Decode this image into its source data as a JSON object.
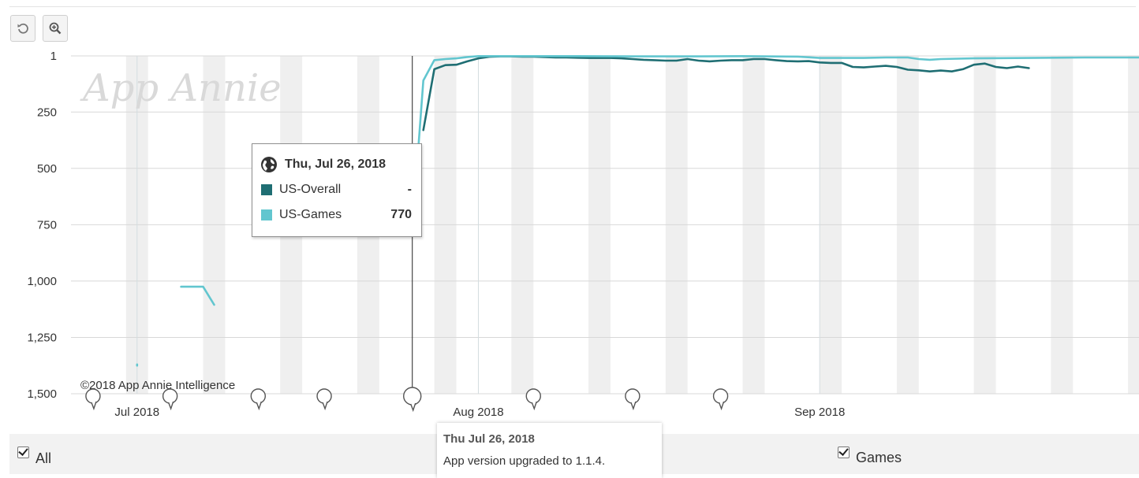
{
  "toolbar": {
    "reset_icon": "reset-zoom-icon",
    "zoom_icon": "zoom-in-icon"
  },
  "watermark": "App Annie",
  "copyright": "©2018 App Annie Intelligence",
  "tooltip": {
    "icon": "globe-icon",
    "date": "Thu, Jul 26, 2018",
    "rows": [
      {
        "name": "US-Overall",
        "value": "-",
        "color": "#1f6e73"
      },
      {
        "name": "US-Games",
        "value": "770",
        "color": "#62c6cf"
      }
    ]
  },
  "event_popup": {
    "date": "Thu Jul 26, 2018",
    "text": "App version upgraded to 1.1.4."
  },
  "legend": [
    {
      "label": "All",
      "checked": true
    },
    {
      "label": "Games",
      "checked": true
    }
  ],
  "chart_data": {
    "type": "line",
    "y_reversed": true,
    "ylim": [
      1,
      1500
    ],
    "yticks": [
      {
        "value": 1,
        "label": "1"
      },
      {
        "value": 250,
        "label": "250"
      },
      {
        "value": 500,
        "label": "500"
      },
      {
        "value": 750,
        "label": "750"
      },
      {
        "value": 1000,
        "label": "1,000"
      },
      {
        "value": 1250,
        "label": "1,250"
      },
      {
        "value": 1500,
        "label": "1,500"
      }
    ],
    "xlim": [
      "2018-06-25",
      "2018-09-30"
    ],
    "xticks": [
      {
        "date": "2018-07-01",
        "label": "Jul 2018"
      },
      {
        "date": "2018-08-01",
        "label": "Aug 2018"
      },
      {
        "date": "2018-09-01",
        "label": "Sep 2018"
      }
    ],
    "weekend_bands": [
      "2018-06-30",
      "2018-07-07",
      "2018-07-14",
      "2018-07-21",
      "2018-07-28",
      "2018-08-04",
      "2018-08-11",
      "2018-08-18",
      "2018-08-25",
      "2018-09-01",
      "2018-09-08",
      "2018-09-15",
      "2018-09-22",
      "2018-09-29"
    ],
    "crosshair_date": "2018-07-26",
    "event_markers": [
      "2018-06-27",
      "2018-07-04",
      "2018-07-12",
      "2018-07-18",
      "2018-07-26",
      "2018-08-06",
      "2018-08-15",
      "2018-08-23"
    ],
    "series": [
      {
        "name": "US-Overall",
        "color": "#1f6e73",
        "segments": [
          [
            [
              "2018-07-27",
              330
            ],
            [
              "2018-07-28",
              60
            ],
            [
              "2018-07-29",
              42
            ],
            [
              "2018-07-30",
              40
            ],
            [
              "2018-07-31",
              25
            ],
            [
              "2018-08-01",
              12
            ],
            [
              "2018-08-02",
              5
            ],
            [
              "2018-08-03",
              3
            ],
            [
              "2018-08-04",
              3
            ],
            [
              "2018-08-05",
              4
            ],
            [
              "2018-08-06",
              4
            ],
            [
              "2018-08-07",
              6
            ],
            [
              "2018-08-08",
              8
            ],
            [
              "2018-08-09",
              8
            ],
            [
              "2018-08-10",
              9
            ],
            [
              "2018-08-11",
              10
            ],
            [
              "2018-08-12",
              10
            ],
            [
              "2018-08-13",
              10
            ],
            [
              "2018-08-14",
              12
            ],
            [
              "2018-08-15",
              15
            ],
            [
              "2018-08-16",
              18
            ],
            [
              "2018-08-17",
              20
            ],
            [
              "2018-08-18",
              22
            ],
            [
              "2018-08-19",
              22
            ],
            [
              "2018-08-20",
              15
            ],
            [
              "2018-08-21",
              22
            ],
            [
              "2018-08-22",
              25
            ],
            [
              "2018-08-23",
              22
            ],
            [
              "2018-08-24",
              20
            ],
            [
              "2018-08-25",
              20
            ],
            [
              "2018-08-26",
              15
            ],
            [
              "2018-08-27",
              15
            ],
            [
              "2018-08-28",
              20
            ],
            [
              "2018-08-29",
              24
            ],
            [
              "2018-08-30",
              25
            ],
            [
              "2018-08-31",
              24
            ],
            [
              "2018-09-01",
              30
            ],
            [
              "2018-09-02",
              32
            ],
            [
              "2018-09-03",
              32
            ],
            [
              "2018-09-04",
              50
            ],
            [
              "2018-09-05",
              52
            ],
            [
              "2018-09-06",
              48
            ],
            [
              "2018-09-07",
              45
            ],
            [
              "2018-09-08",
              50
            ],
            [
              "2018-09-09",
              62
            ],
            [
              "2018-09-10",
              65
            ],
            [
              "2018-09-11",
              70
            ],
            [
              "2018-09-12",
              66
            ],
            [
              "2018-09-13",
              70
            ],
            [
              "2018-09-14",
              60
            ],
            [
              "2018-09-15",
              40
            ],
            [
              "2018-09-16",
              35
            ],
            [
              "2018-09-17",
              50
            ],
            [
              "2018-09-18",
              55
            ],
            [
              "2018-09-19",
              48
            ],
            [
              "2018-09-20",
              55
            ]
          ]
        ]
      },
      {
        "name": "US-Games",
        "color": "#62c6cf",
        "segments": [
          [
            [
              "2018-07-01",
              1370
            ],
            [
              "2018-07-01",
              1375
            ]
          ],
          [
            [
              "2018-07-05",
              1025
            ],
            [
              "2018-07-07",
              1025
            ],
            [
              "2018-07-08",
              1105
            ]
          ],
          [
            [
              "2018-07-26",
              770
            ],
            [
              "2018-07-27",
              110
            ],
            [
              "2018-07-28",
              20
            ],
            [
              "2018-07-29",
              15
            ],
            [
              "2018-07-30",
              12
            ],
            [
              "2018-07-31",
              6
            ],
            [
              "2018-08-01",
              2
            ],
            [
              "2018-08-02",
              2
            ],
            [
              "2018-08-03",
              2
            ],
            [
              "2018-08-04",
              2
            ],
            [
              "2018-08-05",
              2
            ],
            [
              "2018-08-06",
              2
            ],
            [
              "2018-08-10",
              2
            ],
            [
              "2018-08-15",
              3
            ],
            [
              "2018-08-20",
              3
            ],
            [
              "2018-08-25",
              2
            ],
            [
              "2018-08-30",
              4
            ],
            [
              "2018-09-01",
              10
            ],
            [
              "2018-09-05",
              10
            ],
            [
              "2018-09-07",
              8
            ],
            [
              "2018-09-09",
              8
            ],
            [
              "2018-09-10",
              15
            ],
            [
              "2018-09-11",
              18
            ],
            [
              "2018-09-12",
              15
            ],
            [
              "2018-09-15",
              12
            ],
            [
              "2018-09-20",
              10
            ],
            [
              "2018-09-25",
              8
            ],
            [
              "2018-09-30",
              8
            ]
          ]
        ]
      }
    ]
  }
}
